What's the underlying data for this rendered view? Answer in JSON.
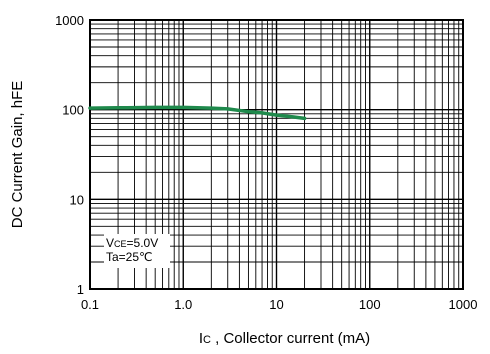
{
  "chart_data": {
    "type": "line",
    "xlabel_main": "I",
    "xlabel_sub": "C",
    "xlabel_rest": " , Collector current (mA)",
    "ylabel": "DC Current Gain, hFE",
    "x_scale": "log",
    "y_scale": "log",
    "xlim": [
      0.1,
      1000
    ],
    "ylim": [
      1,
      1000
    ],
    "grid": true,
    "x_ticks": [
      {
        "value": 0.1,
        "label": "0.1"
      },
      {
        "value": 1,
        "label": "1.0"
      },
      {
        "value": 10,
        "label": "10"
      },
      {
        "value": 100,
        "label": "100"
      },
      {
        "value": 1000,
        "label": "1000"
      }
    ],
    "y_ticks": [
      {
        "value": 1,
        "label": "1"
      },
      {
        "value": 10,
        "label": "10"
      },
      {
        "value": 100,
        "label": "100"
      },
      {
        "value": 1000,
        "label": "1000"
      }
    ],
    "series": [
      {
        "color": "#1f8a4c",
        "points": [
          {
            "x": 0.1,
            "y": 104
          },
          {
            "x": 0.2,
            "y": 105
          },
          {
            "x": 0.5,
            "y": 106
          },
          {
            "x": 1.0,
            "y": 106
          },
          {
            "x": 2.0,
            "y": 104
          },
          {
            "x": 3.0,
            "y": 102
          },
          {
            "x": 5.0,
            "y": 95
          },
          {
            "x": 7.0,
            "y": 92
          },
          {
            "x": 10,
            "y": 87
          },
          {
            "x": 15,
            "y": 83
          },
          {
            "x": 20,
            "y": 80
          }
        ]
      }
    ],
    "annotations": [
      {
        "main": "V",
        "sub": "CE",
        "rest": "=5.0V"
      },
      {
        "main": "Ta=25℃",
        "sub": "",
        "rest": ""
      }
    ]
  }
}
